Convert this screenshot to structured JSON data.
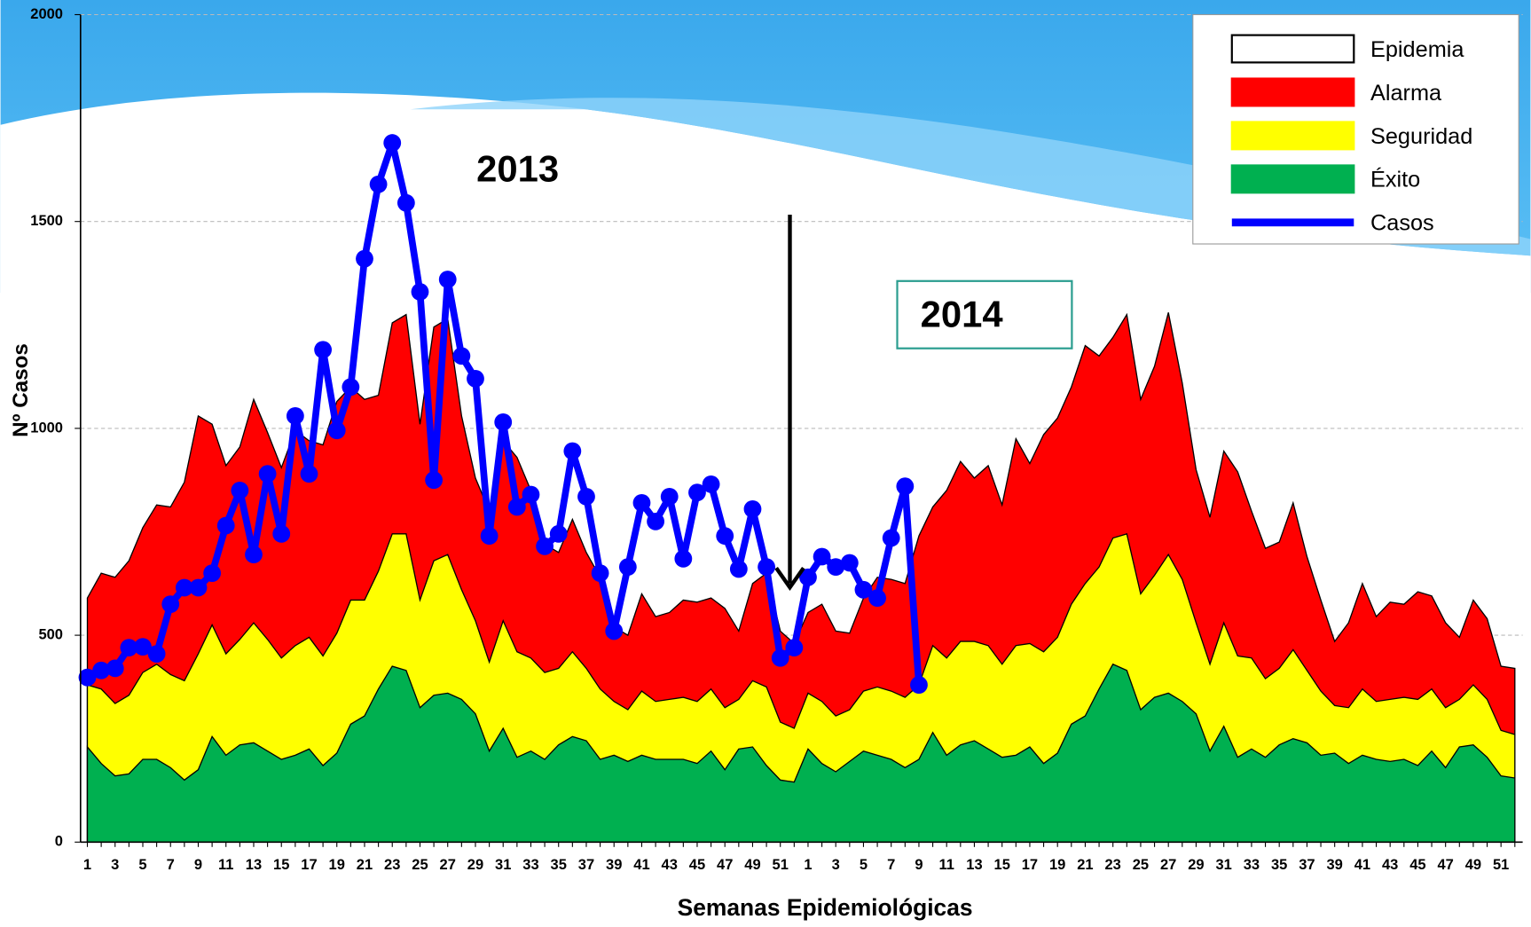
{
  "chart_data": {
    "type": "area",
    "x_label": "Semanas Epidemiológicas",
    "y_label": "Nº Casos",
    "annotations": [
      "2013",
      "2014"
    ],
    "ylim": [
      0,
      2000
    ],
    "yticks": [
      0,
      500,
      1000,
      1500,
      2000
    ],
    "grid": true,
    "legend_position": "upper right",
    "categories": [
      "1",
      null,
      "3",
      null,
      "5",
      null,
      "7",
      null,
      "9",
      null,
      "11",
      null,
      "13",
      null,
      "15",
      null,
      "17",
      null,
      "19",
      null,
      "21",
      null,
      "23",
      null,
      "25",
      null,
      "27",
      null,
      "29",
      null,
      "31",
      null,
      "33",
      null,
      "35",
      null,
      "37",
      null,
      "39",
      null,
      "41",
      null,
      "43",
      null,
      "45",
      null,
      "47",
      null,
      "49",
      null,
      "51",
      null,
      "1",
      null,
      "3",
      null,
      "5",
      null,
      "7",
      null,
      "9",
      null,
      "11",
      null,
      "13",
      null,
      "15",
      null,
      "17",
      null,
      "19",
      null,
      "21",
      null,
      "23",
      null,
      "25",
      null,
      "27",
      null,
      "29",
      null,
      "31",
      null,
      "33",
      null,
      "35",
      null,
      "37",
      null,
      "39",
      null,
      "41",
      null,
      "43",
      null,
      "45",
      null,
      "47",
      null,
      "49",
      null,
      "51",
      null
    ],
    "series": [
      {
        "name": "Epidemia",
        "color": "#ffffff"
      },
      {
        "name": "Alarma",
        "color": "#ff0000",
        "values": [
          590,
          650,
          640,
          680,
          760,
          815,
          810,
          870,
          1030,
          1010,
          910,
          955,
          1070,
          990,
          905,
          995,
          970,
          960,
          1065,
          1100,
          1070,
          1080,
          1255,
          1275,
          1010,
          1245,
          1265,
          1030,
          880,
          800,
          970,
          930,
          850,
          720,
          700,
          780,
          700,
          640,
          520,
          500,
          600,
          545,
          555,
          585,
          580,
          590,
          565,
          510,
          625,
          650,
          510,
          480,
          555,
          575,
          510,
          505,
          590,
          640,
          635,
          625,
          740,
          810,
          850,
          920,
          880,
          910,
          815,
          975,
          915,
          985,
          1025,
          1100,
          1200,
          1175,
          1220,
          1275,
          1070,
          1150,
          1280,
          1110,
          900,
          785,
          945,
          895,
          800,
          710,
          725,
          820,
          690,
          585,
          485,
          530,
          625,
          545,
          580,
          575,
          605,
          595,
          530,
          495,
          585,
          540,
          425,
          420
        ]
      },
      {
        "name": "Seguridad",
        "color": "#ffff00",
        "values": [
          380,
          370,
          335,
          355,
          410,
          430,
          405,
          390,
          455,
          525,
          455,
          490,
          530,
          490,
          445,
          475,
          495,
          450,
          505,
          585,
          585,
          655,
          745,
          745,
          585,
          680,
          695,
          610,
          535,
          435,
          535,
          460,
          445,
          410,
          420,
          460,
          420,
          370,
          340,
          320,
          365,
          340,
          345,
          350,
          340,
          370,
          325,
          345,
          390,
          375,
          290,
          275,
          360,
          340,
          305,
          320,
          365,
          375,
          365,
          350,
          380,
          475,
          445,
          485,
          485,
          475,
          430,
          475,
          480,
          460,
          495,
          575,
          625,
          665,
          735,
          745,
          600,
          645,
          695,
          635,
          530,
          430,
          530,
          450,
          445,
          395,
          420,
          465,
          415,
          365,
          330,
          325,
          370,
          340,
          345,
          350,
          345,
          370,
          325,
          345,
          380,
          345,
          270,
          260
        ]
      },
      {
        "name": "Éxito",
        "color": "#00b050",
        "values": [
          230,
          190,
          160,
          165,
          200,
          200,
          180,
          150,
          175,
          255,
          210,
          235,
          240,
          220,
          200,
          210,
          225,
          185,
          215,
          285,
          305,
          370,
          425,
          415,
          325,
          355,
          360,
          345,
          310,
          220,
          275,
          205,
          220,
          200,
          235,
          255,
          245,
          200,
          210,
          195,
          210,
          200,
          200,
          200,
          190,
          220,
          175,
          225,
          230,
          185,
          150,
          145,
          225,
          190,
          170,
          195,
          220,
          210,
          200,
          180,
          200,
          265,
          210,
          235,
          245,
          225,
          205,
          210,
          230,
          190,
          215,
          285,
          305,
          370,
          430,
          415,
          320,
          350,
          360,
          340,
          310,
          220,
          280,
          205,
          225,
          205,
          235,
          250,
          240,
          210,
          215,
          190,
          210,
          200,
          195,
          200,
          185,
          220,
          180,
          230,
          235,
          205,
          160,
          155
        ]
      },
      {
        "name": "Casos",
        "type": "line",
        "color": "#0000ff",
        "values": [
          398,
          415,
          420,
          470,
          472,
          455,
          575,
          615,
          615,
          650,
          765,
          850,
          695,
          890,
          745,
          1030,
          890,
          1190,
          995,
          1100,
          1410,
          1590,
          1690,
          1545,
          1330,
          875,
          1360,
          1175,
          1120,
          740,
          1015,
          810,
          840,
          715,
          745,
          945,
          835,
          650,
          510,
          665,
          820,
          775,
          835,
          685,
          845,
          865,
          740,
          660,
          805,
          665,
          445,
          470,
          640,
          690,
          665,
          675,
          610,
          590,
          735,
          860,
          380,
          null,
          null,
          null,
          null,
          null,
          null,
          null,
          null,
          null,
          null,
          null,
          null,
          null,
          null,
          null,
          null,
          null,
          null,
          null,
          null,
          null,
          null,
          null,
          null,
          null,
          null,
          null,
          null,
          null,
          null,
          null,
          null,
          null,
          null,
          null,
          null,
          null,
          null,
          null,
          null,
          null,
          null,
          null
        ]
      }
    ]
  }
}
